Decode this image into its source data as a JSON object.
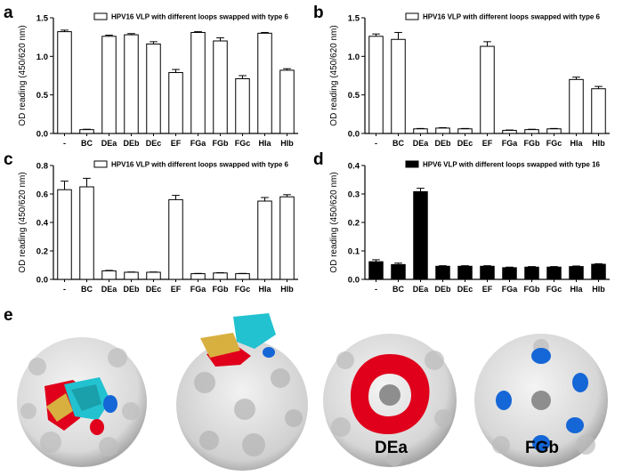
{
  "panel_labels": [
    "a",
    "b",
    "c",
    "d",
    "e"
  ],
  "image_labels": {
    "dea": "DEa",
    "fgb": "FGb"
  },
  "colors": {
    "bar_open": "#ffffff",
    "bar_filled": "#000000",
    "surface": "#e8e8e8",
    "red_loop": "#e0001b",
    "blue_loop": "#1566d6",
    "cyan_ribbon": "#22c2d0",
    "gold_ribbon": "#d8b040"
  },
  "chart_data": [
    {
      "panel": "a",
      "type": "bar",
      "categories": [
        "-",
        "BC",
        "DEa",
        "DEb",
        "DEc",
        "EF",
        "FGa",
        "FGb",
        "FGc",
        "HIa",
        "HIb"
      ],
      "series": [
        {
          "name": "HPV16 VLP with different loops swapped with type 6",
          "values": [
            1.32,
            0.05,
            1.26,
            1.28,
            1.16,
            0.79,
            1.31,
            1.2,
            0.71,
            1.3,
            0.82
          ],
          "errors": [
            0.02,
            0.005,
            0.015,
            0.015,
            0.03,
            0.04,
            0.01,
            0.04,
            0.04,
            0.01,
            0.02
          ],
          "fill": "open"
        }
      ],
      "ylabel": "OD reading (450/620 nm)",
      "ylim": [
        0,
        1.5
      ],
      "yticks": [
        0.0,
        0.5,
        1.0,
        1.5
      ],
      "ytick_labels": [
        "0.0",
        "0.5",
        "1.0",
        "1.5"
      ],
      "legend": "top-right"
    },
    {
      "panel": "b",
      "type": "bar",
      "categories": [
        "-",
        "BC",
        "DEa",
        "DEb",
        "DEc",
        "EF",
        "FGa",
        "FGb",
        "FGc",
        "HIa",
        "HIb"
      ],
      "series": [
        {
          "name": "HPV16 VLP with different loops swapped with type 6",
          "values": [
            1.26,
            1.22,
            0.06,
            0.07,
            0.06,
            1.13,
            0.04,
            0.05,
            0.06,
            0.7,
            0.58
          ],
          "errors": [
            0.03,
            0.09,
            0.005,
            0.005,
            0.005,
            0.06,
            0.005,
            0.005,
            0.005,
            0.03,
            0.03
          ],
          "fill": "open"
        }
      ],
      "ylabel": "OD reading (450/620 nm)",
      "ylim": [
        0,
        1.5
      ],
      "yticks": [
        0.0,
        0.5,
        1.0,
        1.5
      ],
      "ytick_labels": [
        "0.0",
        "0.5",
        "1.0",
        "1.5"
      ],
      "legend": "top-right"
    },
    {
      "panel": "c",
      "type": "bar",
      "categories": [
        "-",
        "BC",
        "DEa",
        "DEb",
        "DEc",
        "EF",
        "FGa",
        "FGb",
        "FGc",
        "HIa",
        "HIb"
      ],
      "series": [
        {
          "name": "HPV16 VLP with different loops swapped with type 6",
          "values": [
            0.63,
            0.65,
            0.06,
            0.05,
            0.05,
            0.56,
            0.04,
            0.045,
            0.04,
            0.55,
            0.58
          ],
          "errors": [
            0.06,
            0.06,
            0.003,
            0.002,
            0.002,
            0.03,
            0.002,
            0.002,
            0.002,
            0.025,
            0.015
          ],
          "fill": "open"
        }
      ],
      "ylabel": "OD reading (450/620 nm)",
      "ylim": [
        0,
        0.8
      ],
      "yticks": [
        0.0,
        0.2,
        0.4,
        0.6,
        0.8
      ],
      "ytick_labels": [
        "0.0",
        "0.2",
        "0.4",
        "0.6",
        "0.8"
      ],
      "legend": "top-right"
    },
    {
      "panel": "d",
      "type": "bar",
      "categories": [
        "-",
        "BC",
        "DEa",
        "DEb",
        "DEc",
        "EF",
        "FGa",
        "FGb",
        "FGc",
        "HIa",
        "HIb"
      ],
      "series": [
        {
          "name": "HPV6 VLP with different loops swapped with type 16",
          "values": [
            0.062,
            0.052,
            0.308,
            0.046,
            0.046,
            0.046,
            0.041,
            0.043,
            0.043,
            0.045,
            0.053
          ],
          "errors": [
            0.007,
            0.005,
            0.012,
            0.002,
            0.002,
            0.002,
            0.002,
            0.002,
            0.002,
            0.002,
            0.002
          ],
          "fill": "filled"
        }
      ],
      "ylabel": "OD reading (450/620 nm)",
      "ylim": [
        0,
        0.4
      ],
      "yticks": [
        0.0,
        0.1,
        0.2,
        0.3,
        0.4
      ],
      "ytick_labels": [
        "0.0",
        "0.1",
        "0.2",
        "0.3",
        "0.4"
      ],
      "legend": "top-right"
    }
  ]
}
